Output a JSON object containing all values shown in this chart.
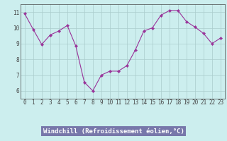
{
  "x": [
    0,
    1,
    2,
    3,
    4,
    5,
    6,
    7,
    8,
    9,
    10,
    11,
    12,
    13,
    14,
    15,
    16,
    17,
    18,
    19,
    20,
    21,
    22,
    23
  ],
  "y": [
    10.9,
    9.9,
    8.95,
    9.55,
    9.8,
    10.15,
    8.85,
    6.55,
    6.0,
    7.0,
    7.25,
    7.25,
    7.6,
    8.6,
    9.8,
    10.0,
    10.8,
    11.1,
    11.1,
    10.4,
    10.05,
    9.65,
    9.0,
    9.35
  ],
  "line_color": "#993399",
  "marker": "D",
  "marker_size": 2.2,
  "bg_color": "#cceeee",
  "grid_color": "#aacccc",
  "xlabel": "Windchill (Refroidissement éolien,°C)",
  "ylim": [
    5.5,
    11.5
  ],
  "xlim": [
    -0.5,
    23.5
  ],
  "yticks": [
    6,
    7,
    8,
    9,
    10,
    11
  ],
  "xticks": [
    0,
    1,
    2,
    3,
    4,
    5,
    6,
    7,
    8,
    9,
    10,
    11,
    12,
    13,
    14,
    15,
    16,
    17,
    18,
    19,
    20,
    21,
    22,
    23
  ],
  "tick_fontsize": 5.5,
  "xlabel_fontsize": 6.5,
  "xlabel_color": "white",
  "xlabel_bg": "#7777aa",
  "axis_color": "#444444",
  "linewidth": 0.8
}
